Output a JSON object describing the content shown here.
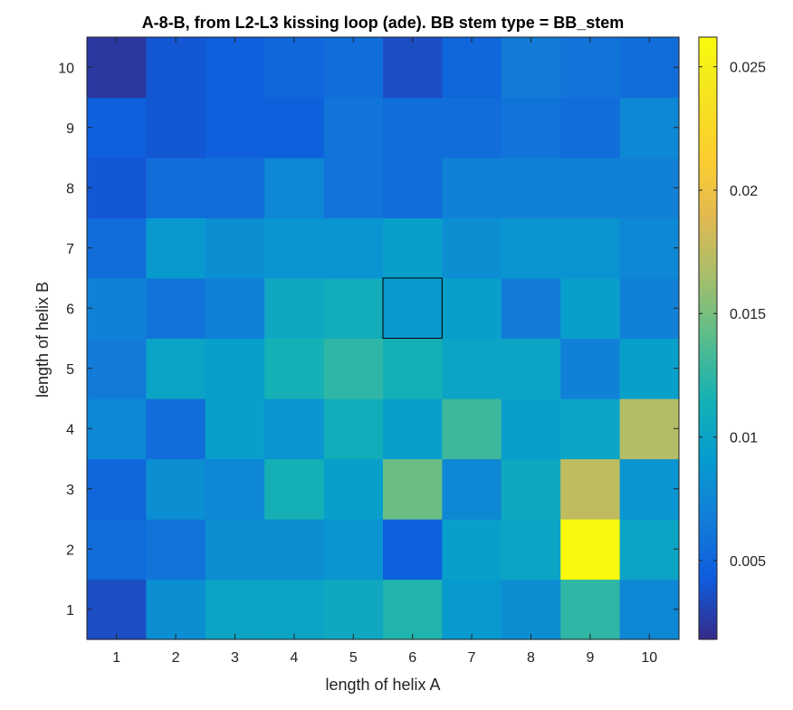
{
  "chart_data": {
    "type": "heatmap",
    "title": "A-8-B, from L2-L3 kissing loop (ade). BB stem type = BB_stem",
    "xlabel": "length of helix A",
    "ylabel": "length of helix B",
    "x": [
      1,
      2,
      3,
      4,
      5,
      6,
      7,
      8,
      9,
      10
    ],
    "y": [
      1,
      2,
      3,
      4,
      5,
      6,
      7,
      8,
      9,
      10
    ],
    "x_tick_labels": [
      "1",
      "2",
      "3",
      "4",
      "5",
      "6",
      "7",
      "8",
      "9",
      "10"
    ],
    "y_tick_labels": [
      "1",
      "2",
      "3",
      "4",
      "5",
      "6",
      "7",
      "8",
      "9",
      "10"
    ],
    "values_by_row": [
      [
        0.0035,
        0.008,
        0.01,
        0.01,
        0.0105,
        0.012,
        0.009,
        0.008,
        0.0125,
        0.0075
      ],
      [
        0.0055,
        0.006,
        0.008,
        0.008,
        0.0085,
        0.0045,
        0.0095,
        0.01,
        0.026,
        0.01
      ],
      [
        0.005,
        0.008,
        0.0075,
        0.0115,
        0.0095,
        0.0145,
        0.0075,
        0.0105,
        0.0175,
        0.0085
      ],
      [
        0.0075,
        0.0055,
        0.0095,
        0.0085,
        0.011,
        0.0095,
        0.013,
        0.0095,
        0.01,
        0.017
      ],
      [
        0.0065,
        0.01,
        0.0095,
        0.0115,
        0.0125,
        0.0115,
        0.01,
        0.01,
        0.007,
        0.0095
      ],
      [
        0.007,
        0.006,
        0.007,
        0.0105,
        0.011,
        0.009,
        0.0095,
        0.0065,
        0.0095,
        0.007
      ],
      [
        0.0055,
        0.009,
        0.008,
        0.0085,
        0.0085,
        0.0095,
        0.008,
        0.0085,
        0.0085,
        0.0075
      ],
      [
        0.004,
        0.0055,
        0.0055,
        0.0075,
        0.006,
        0.0055,
        0.007,
        0.007,
        0.007,
        0.007
      ],
      [
        0.0045,
        0.004,
        0.0045,
        0.0045,
        0.006,
        0.0055,
        0.0055,
        0.006,
        0.0055,
        0.0075
      ],
      [
        0.0025,
        0.004,
        0.0045,
        0.005,
        0.0055,
        0.0035,
        0.005,
        0.0065,
        0.006,
        0.0055
      ]
    ],
    "highlighted_cell": {
      "x": 6,
      "y": 6
    },
    "colorbar": {
      "colormap": "parula",
      "range": [
        0.0018,
        0.0262
      ],
      "ticks": [
        0.005,
        0.01,
        0.015,
        0.02,
        0.025
      ],
      "tick_labels": [
        "0.005",
        "0.01",
        "0.015",
        "0.02",
        "0.025"
      ]
    },
    "grid": false
  }
}
